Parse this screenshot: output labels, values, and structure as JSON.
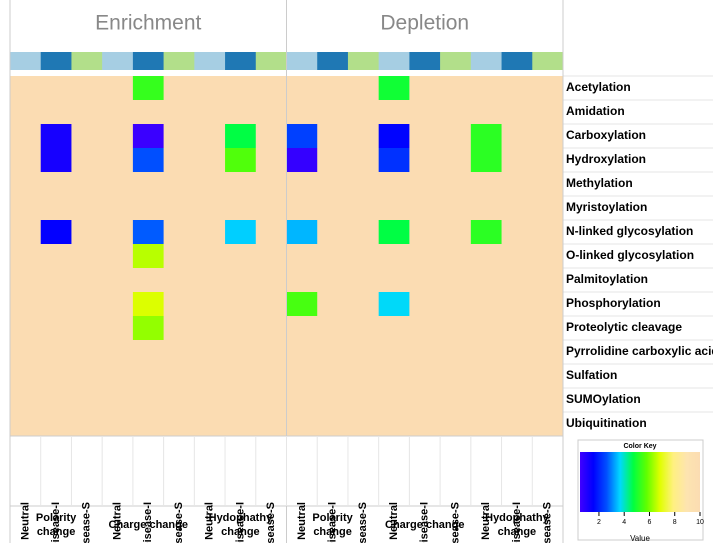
{
  "chart_data": {
    "type": "heatmap",
    "panels": [
      "Enrichment",
      "Depletion"
    ],
    "groups": [
      "Polarity change",
      "Charge change",
      "Hydophathy change",
      "Polarity change",
      "Charge change",
      "Hydophathy change"
    ],
    "columns": [
      "Neutral",
      "Disease-I",
      "Disease-S",
      "Neutral",
      "Disease-I",
      "Disease-S",
      "Neutral",
      "Disease-I",
      "Disease-S",
      "Neutral",
      "Disease-I",
      "Disease-S",
      "Neutral",
      "Disease-I",
      "Disease-S",
      "Neutral",
      "Disease-I",
      "Disease-S"
    ],
    "column_colors": [
      "#a6cee3",
      "#1f78b4",
      "#b2df8a"
    ],
    "rows": [
      "Acetylation",
      "Amidation",
      "Carboxylation",
      "Hydroxylation",
      "Methylation",
      "Myristoylation",
      "N-linked glycosylation",
      "O-linked glycosylation",
      "Palmitoylation",
      "Phosphorylation",
      "Proteolytic cleavage",
      "Pyrrolidine carboxylic acid",
      "Sulfation",
      "SUMOylation",
      "Ubiquitination"
    ],
    "values": [
      [
        null,
        null,
        null,
        null,
        5.3,
        null,
        null,
        null,
        null,
        null,
        null,
        null,
        4.9,
        null,
        null,
        null,
        null,
        null
      ],
      [
        null,
        null,
        null,
        null,
        null,
        null,
        null,
        null,
        null,
        null,
        null,
        null,
        null,
        null,
        null,
        null,
        null,
        null
      ],
      [
        null,
        1.2,
        null,
        null,
        0.6,
        null,
        null,
        4.7,
        null,
        2.4,
        null,
        null,
        1.6,
        null,
        null,
        5.2,
        null,
        null
      ],
      [
        null,
        1.2,
        null,
        null,
        2.6,
        null,
        null,
        5.6,
        null,
        0.7,
        null,
        null,
        2.2,
        null,
        null,
        5.2,
        null,
        null
      ],
      [
        null,
        null,
        null,
        null,
        null,
        null,
        null,
        null,
        null,
        null,
        null,
        null,
        null,
        null,
        null,
        null,
        null,
        null
      ],
      [
        null,
        null,
        null,
        null,
        null,
        null,
        null,
        null,
        null,
        null,
        null,
        null,
        null,
        null,
        null,
        null,
        null,
        null
      ],
      [
        null,
        1.5,
        null,
        null,
        2.7,
        null,
        null,
        3.6,
        null,
        3.4,
        null,
        null,
        4.7,
        null,
        null,
        5.2,
        null,
        null
      ],
      [
        null,
        null,
        null,
        null,
        6.5,
        null,
        null,
        null,
        null,
        null,
        null,
        null,
        null,
        null,
        null,
        null,
        null,
        null
      ],
      [
        null,
        null,
        null,
        null,
        null,
        null,
        null,
        null,
        null,
        null,
        null,
        null,
        null,
        null,
        null,
        null,
        null,
        null
      ],
      [
        null,
        null,
        null,
        null,
        6.8,
        null,
        null,
        null,
        null,
        5.5,
        null,
        null,
        3.7,
        null,
        null,
        null,
        null,
        null
      ],
      [
        null,
        null,
        null,
        null,
        6.2,
        null,
        null,
        null,
        null,
        null,
        null,
        null,
        null,
        null,
        null,
        null,
        null,
        null
      ],
      [
        null,
        null,
        null,
        null,
        null,
        null,
        null,
        null,
        null,
        null,
        null,
        null,
        null,
        null,
        null,
        null,
        null,
        null
      ],
      [
        null,
        null,
        null,
        null,
        null,
        null,
        null,
        null,
        null,
        null,
        null,
        null,
        null,
        null,
        null,
        null,
        null,
        null
      ],
      [
        null,
        null,
        null,
        null,
        null,
        null,
        null,
        null,
        null,
        null,
        null,
        null,
        null,
        null,
        null,
        null,
        null,
        null
      ],
      [
        null,
        null,
        null,
        null,
        null,
        null,
        null,
        null,
        null,
        null,
        null,
        null,
        null,
        null,
        null,
        null,
        null,
        null
      ]
    ],
    "colormap": [
      "#4000ff",
      "#0000ff",
      "#0050ff",
      "#00d8ff",
      "#00ff40",
      "#60ff00",
      "#e0ff00",
      "#fff080",
      "#fde4b0",
      "#fbdcb2"
    ],
    "color_key": {
      "title": "Color Key",
      "xlabel": "Value",
      "clim": [
        0.5,
        10
      ],
      "ticks": [
        2,
        4,
        6,
        8,
        10
      ]
    }
  }
}
